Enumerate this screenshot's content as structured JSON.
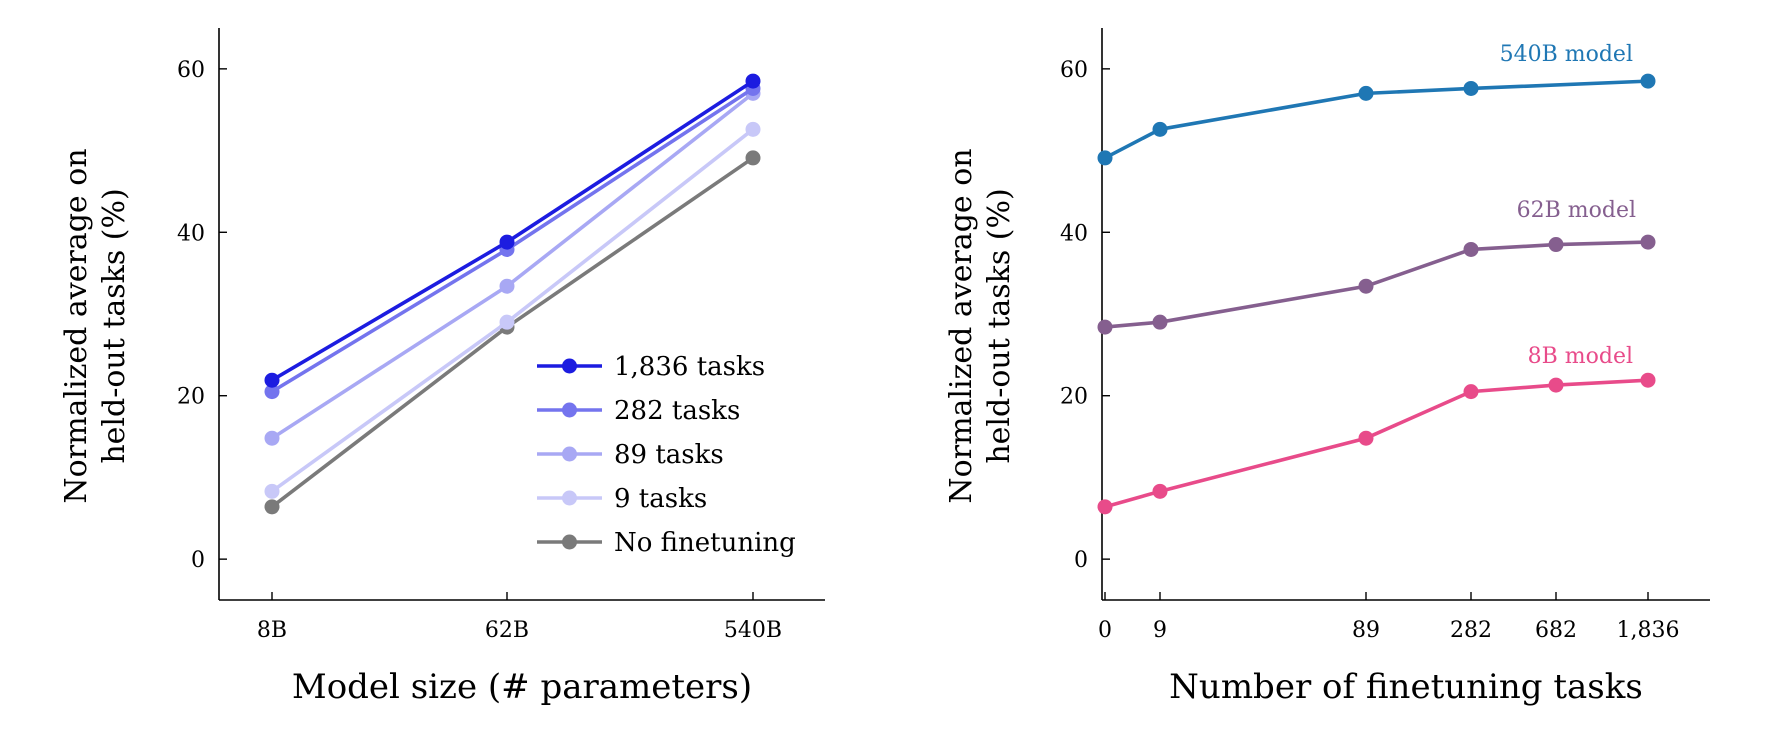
{
  "chart_data": [
    {
      "type": "line",
      "xlabel": "Model size (# parameters)",
      "ylabel": [
        "Normalized average on",
        "held-out tasks (%)"
      ],
      "categories": [
        "8B",
        "62B",
        "540B"
      ],
      "y_ticks": [
        0,
        20,
        40,
        60
      ],
      "ylim": [
        -5,
        65
      ],
      "legend_position": "lower-right",
      "series": [
        {
          "name": "1,836 tasks",
          "color": "#1c1ce0",
          "values": [
            21.9,
            38.8,
            58.5
          ]
        },
        {
          "name": "282 tasks",
          "color": "#7474ee",
          "values": [
            20.5,
            37.9,
            57.6
          ]
        },
        {
          "name": "89 tasks",
          "color": "#a8a8f4",
          "values": [
            14.8,
            33.4,
            57.0
          ]
        },
        {
          "name": "9 tasks",
          "color": "#c8c8f8",
          "values": [
            8.3,
            29.0,
            52.6
          ]
        },
        {
          "name": "No finetuning",
          "color": "#7a7a7a",
          "values": [
            6.4,
            28.4,
            49.1
          ]
        }
      ]
    },
    {
      "type": "line",
      "xlabel": "Number of finetuning tasks",
      "ylabel": [
        "Normalized average on",
        "held-out tasks (%)"
      ],
      "x_ticks": [
        "0",
        "9",
        "89",
        "282",
        "682",
        "1,836"
      ],
      "y_ticks": [
        0,
        20,
        40,
        60
      ],
      "ylim": [
        -5,
        65
      ],
      "series": [
        {
          "name": "540B model",
          "color": "#1f77b4",
          "values": [
            49.1,
            52.6,
            57.0,
            57.6,
            null,
            58.5
          ]
        },
        {
          "name": "62B model",
          "color": "#855f8f",
          "values": [
            28.4,
            29.0,
            33.4,
            37.9,
            38.5,
            38.8
          ]
        },
        {
          "name": "8B model",
          "color": "#e84b8a",
          "values": [
            6.4,
            8.3,
            14.8,
            20.5,
            21.3,
            21.9
          ]
        }
      ]
    }
  ]
}
